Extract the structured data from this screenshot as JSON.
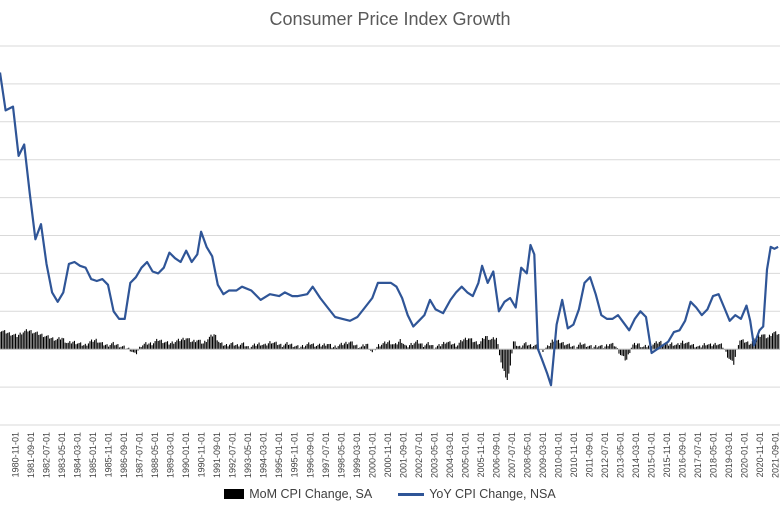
{
  "chart_data": {
    "type": "bar+line",
    "title": "Consumer Price Index Growth",
    "xlabel": "",
    "ylabel": "",
    "ylim": [
      -4,
      16
    ],
    "grid": true,
    "legend_position": "bottom",
    "x_tick_labels": [
      "1980-11-01",
      "1981-09-01",
      "1982-07-01",
      "1983-05-01",
      "1984-03-01",
      "1985-01-01",
      "1985-11-01",
      "1986-09-01",
      "1987-07-01",
      "1988-05-01",
      "1989-03-01",
      "1990-01-01",
      "1990-11-01",
      "1991-09-01",
      "1992-07-01",
      "1993-05-01",
      "1994-03-01",
      "1995-01-01",
      "1995-11-01",
      "1996-09-01",
      "1997-07-01",
      "1998-05-01",
      "1999-03-01",
      "2000-01-01",
      "2000-11-01",
      "2001-09-01",
      "2002-07-01",
      "2003-05-01",
      "2004-03-01",
      "2005-01-01",
      "2005-11-01",
      "2006-09-01",
      "2007-07-01",
      "2008-05-01",
      "2009-03-01",
      "2010-01-01",
      "2010-11-01",
      "2011-09-01",
      "2012-07-01",
      "2013-05-01",
      "2014-03-01",
      "2015-01-01",
      "2015-11-01",
      "2016-09-01",
      "2017-07-01",
      "2018-05-01",
      "2019-03-01",
      "2020-01-01",
      "2020-11-01",
      "2021-09-01"
    ],
    "series": [
      {
        "name": "YoY CPI Change, NSA",
        "type": "line",
        "color": "#2f5597",
        "x": [
          1980.0,
          1980.3,
          1980.7,
          1981.0,
          1981.3,
          1981.6,
          1981.9,
          1982.2,
          1982.5,
          1982.8,
          1983.1,
          1983.4,
          1983.7,
          1984.0,
          1984.3,
          1984.6,
          1984.9,
          1985.2,
          1985.5,
          1985.8,
          1986.1,
          1986.4,
          1986.7,
          1987.0,
          1987.3,
          1987.6,
          1987.9,
          1988.2,
          1988.5,
          1988.8,
          1989.1,
          1989.4,
          1989.7,
          1990.0,
          1990.3,
          1990.6,
          1990.8,
          1991.1,
          1991.4,
          1991.7,
          1992.0,
          1992.3,
          1992.7,
          1993.0,
          1993.5,
          1994.0,
          1994.5,
          1995.0,
          1995.3,
          1995.7,
          1996.0,
          1996.5,
          1996.8,
          1997.2,
          1997.6,
          1998.0,
          1998.4,
          1998.8,
          1999.2,
          1999.6,
          2000.0,
          2000.3,
          2000.6,
          2001.0,
          2001.3,
          2001.6,
          2001.9,
          2002.2,
          2002.5,
          2002.8,
          2003.1,
          2003.4,
          2003.8,
          2004.2,
          2004.5,
          2004.8,
          2005.1,
          2005.4,
          2005.7,
          2005.9,
          2006.2,
          2006.5,
          2006.8,
          2007.1,
          2007.4,
          2007.7,
          2008.0,
          2008.3,
          2008.5,
          2008.7,
          2008.9,
          2009.1,
          2009.4,
          2009.6,
          2009.9,
          2010.2,
          2010.5,
          2010.8,
          2011.1,
          2011.4,
          2011.7,
          2012.0,
          2012.3,
          2012.6,
          2012.9,
          2013.2,
          2013.5,
          2013.8,
          2014.1,
          2014.4,
          2014.7,
          2015.0,
          2015.3,
          2015.6,
          2015.9,
          2016.2,
          2016.5,
          2016.8,
          2017.1,
          2017.4,
          2017.7,
          2018.0,
          2018.3,
          2018.6,
          2018.9,
          2019.2,
          2019.5,
          2019.8,
          2020.1,
          2020.3,
          2020.5,
          2020.8,
          2021.0,
          2021.2,
          2021.4,
          2021.6,
          2021.8
        ],
        "y": [
          14.6,
          12.6,
          12.8,
          10.2,
          10.8,
          8.2,
          5.8,
          6.6,
          4.5,
          3.0,
          2.5,
          3.0,
          4.5,
          4.6,
          4.4,
          4.3,
          3.7,
          3.6,
          3.7,
          3.4,
          2.0,
          1.6,
          1.6,
          3.5,
          3.8,
          4.3,
          4.6,
          4.1,
          4.0,
          4.3,
          5.1,
          4.8,
          4.6,
          5.2,
          4.6,
          5.0,
          6.2,
          5.4,
          4.9,
          3.4,
          2.9,
          3.1,
          3.1,
          3.3,
          3.1,
          2.6,
          2.9,
          2.8,
          3.0,
          2.8,
          2.8,
          2.9,
          3.3,
          2.7,
          2.2,
          1.7,
          1.6,
          1.5,
          1.7,
          2.2,
          2.7,
          3.5,
          3.5,
          3.5,
          3.3,
          2.7,
          1.8,
          1.2,
          1.5,
          1.8,
          2.6,
          2.1,
          1.9,
          2.6,
          3.0,
          3.3,
          3.0,
          2.8,
          3.5,
          4.4,
          3.5,
          4.1,
          2.0,
          2.5,
          2.7,
          2.2,
          4.3,
          4.0,
          5.5,
          5.0,
          0.0,
          -0.5,
          -1.3,
          -1.9,
          1.3,
          2.6,
          1.1,
          1.3,
          2.1,
          3.5,
          3.8,
          2.9,
          1.8,
          1.6,
          1.6,
          1.8,
          1.4,
          1.0,
          1.6,
          2.0,
          1.7,
          -0.2,
          0.0,
          0.2,
          0.4,
          0.9,
          1.0,
          1.5,
          2.5,
          2.2,
          1.8,
          2.1,
          2.8,
          2.9,
          2.2,
          1.5,
          1.8,
          1.6,
          2.3,
          1.5,
          0.2,
          1.0,
          1.2,
          4.2,
          5.4,
          5.3,
          5.4
        ]
      },
      {
        "name": "MoM CPI Change, SA",
        "type": "bar",
        "color": "#000000",
        "note": "monthly values; approx. levels shown",
        "x_start": 1980.0,
        "x_end": 2021.9,
        "values": [
          1.0,
          0.9,
          0.8,
          0.7,
          0.9,
          1.0,
          0.9,
          0.8,
          0.7,
          0.6,
          0.5,
          0.6,
          0.3,
          0.4,
          0.3,
          0.2,
          0.4,
          0.5,
          0.3,
          0.2,
          0.3,
          0.2,
          0.1,
          0.0,
          -0.3,
          0.2,
          0.3,
          0.3,
          0.5,
          0.4,
          0.3,
          0.4,
          0.5,
          0.6,
          0.4,
          0.5,
          0.3,
          0.6,
          0.8,
          0.3,
          0.2,
          0.3,
          0.2,
          0.3,
          0.1,
          0.2,
          0.3,
          0.2,
          0.4,
          0.3,
          0.2,
          0.3,
          0.2,
          0.1,
          0.2,
          0.3,
          0.2,
          0.2,
          0.3,
          0.1,
          0.2,
          0.3,
          0.4,
          0.2,
          0.1,
          0.3,
          -0.2,
          0.2,
          0.3,
          0.4,
          0.2,
          0.5,
          0.1,
          0.3,
          0.4,
          0.2,
          0.3,
          0.1,
          0.2,
          0.4,
          0.3,
          0.2,
          0.5,
          0.6,
          0.4,
          0.3,
          0.7,
          0.5,
          0.6,
          -1.0,
          -1.7,
          0.4,
          0.1,
          0.3,
          0.2,
          0.2,
          -0.1,
          0.1,
          0.5,
          0.4,
          0.3,
          0.2,
          0.1,
          0.3,
          0.2,
          0.1,
          0.2,
          0.1,
          0.3,
          0.2,
          -0.3,
          -0.6,
          0.2,
          0.3,
          0.1,
          0.2,
          0.3,
          0.4,
          0.2,
          0.3,
          0.2,
          0.4,
          0.3,
          0.2,
          0.1,
          0.3,
          0.2,
          0.3,
          0.2,
          -0.4,
          -0.8,
          0.5,
          0.4,
          0.3,
          0.6,
          0.8,
          0.6,
          0.9,
          0.8
        ]
      }
    ]
  }
}
